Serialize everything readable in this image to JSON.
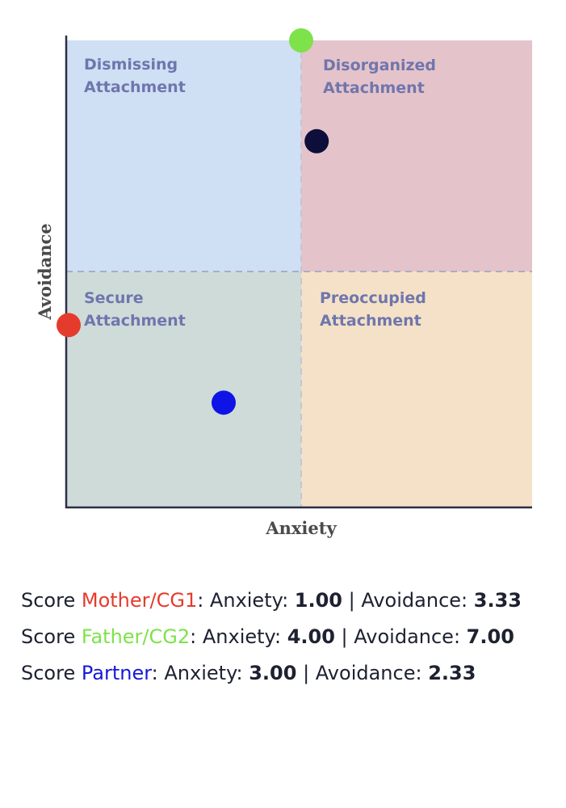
{
  "chart_data": {
    "type": "scatter",
    "xlabel": "Anxiety",
    "ylabel": "Avoidance",
    "xlim": [
      1,
      7
    ],
    "ylim": [
      1,
      7
    ],
    "divider": {
      "x": 4,
      "y": 4
    },
    "grid": false,
    "quadrants": [
      {
        "id": "dismissing",
        "line1": "Dismissing",
        "line2": "Attachment",
        "color": "#cfdff4"
      },
      {
        "id": "disorganized",
        "line1": "Disorganized",
        "line2": "Attachment",
        "color": "#e5c3ca"
      },
      {
        "id": "secure",
        "line1": "Secure",
        "line2": "Attachment",
        "color": "#cfdbd9"
      },
      {
        "id": "preoccupied",
        "line1": "Preoccupied",
        "line2": "Attachment",
        "color": "#f5e1c8"
      }
    ],
    "points": [
      {
        "name": "Mother/CG1",
        "x": 1.0,
        "y": 3.33,
        "color": "#e53b2c"
      },
      {
        "name": "Father/CG2",
        "x": 4.0,
        "y": 7.0,
        "color": "#7ee24a"
      },
      {
        "name": "Partner",
        "x": 3.0,
        "y": 2.33,
        "color": "#0f14e6"
      },
      {
        "name": "",
        "x": 4.2,
        "y": 5.7,
        "color": "#0d0e3a"
      }
    ]
  },
  "scores": [
    {
      "prefix": "Score ",
      "name": "Mother/CG1",
      "color": "#e53b2c",
      "anxiety_label": ": Anxiety: ",
      "anxiety": "1.00",
      "sep": " | Avoidance: ",
      "avoidance": "3.33"
    },
    {
      "prefix": "Score ",
      "name": "Father/CG2",
      "color": "#7ee24a",
      "anxiety_label": ": Anxiety: ",
      "anxiety": "4.00",
      "sep": " | Avoidance: ",
      "avoidance": "7.00"
    },
    {
      "prefix": "Score ",
      "name": "Partner",
      "color": "#1719d9",
      "anxiety_label": ": Anxiety: ",
      "anxiety": "3.00",
      "sep": " | Avoidance: ",
      "avoidance": "2.33"
    }
  ]
}
